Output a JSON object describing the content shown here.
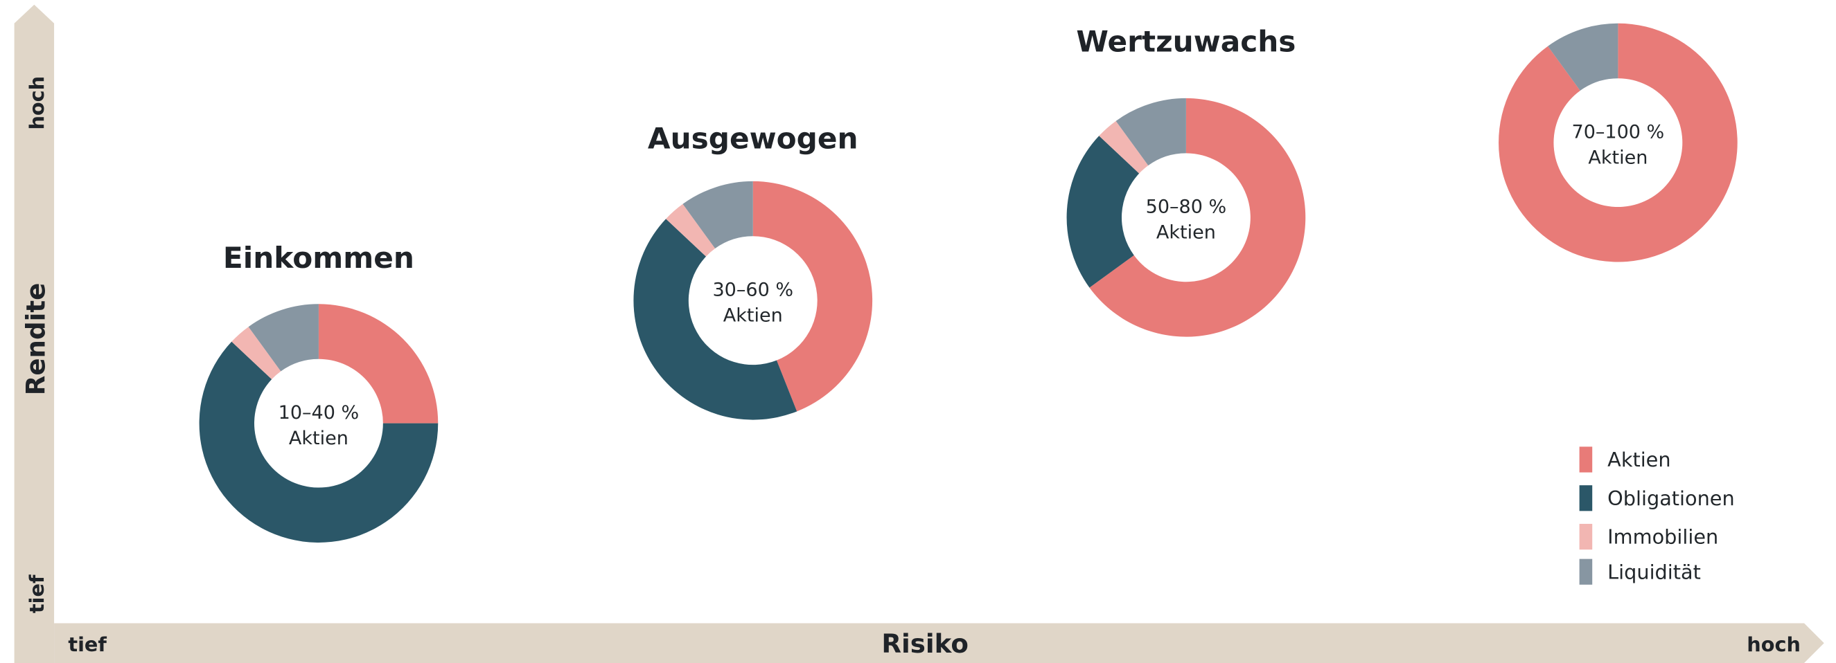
{
  "chart_data": {
    "type": "donut",
    "y_axis": {
      "label": "Rendite",
      "low": "tief",
      "high": "hoch"
    },
    "x_axis": {
      "label": "Risiko",
      "low": "tief",
      "high": "hoch"
    },
    "series": [
      {
        "name": "Aktien",
        "color": "#e87b78"
      },
      {
        "name": "Obligationen",
        "color": "#2b5768"
      },
      {
        "name": "Immobilien",
        "color": "#f2b6b2"
      },
      {
        "name": "Liquidität",
        "color": "#8796a2"
      }
    ],
    "charts": [
      {
        "title": "Einkommen",
        "center": [
          "10–40 %",
          "Aktien"
        ],
        "values": [
          25,
          62,
          3,
          10
        ]
      },
      {
        "title": "Ausgewogen",
        "center": [
          "30–60 %",
          "Aktien"
        ],
        "values": [
          44,
          43,
          3,
          10
        ]
      },
      {
        "title": "Wertzuwachs",
        "center": [
          "50–80 %",
          "Aktien"
        ],
        "values": [
          65,
          22,
          3,
          10
        ]
      },
      {
        "center": [
          "70–100 %",
          "Aktien"
        ],
        "values": [
          90,
          0,
          0,
          10
        ]
      }
    ]
  }
}
